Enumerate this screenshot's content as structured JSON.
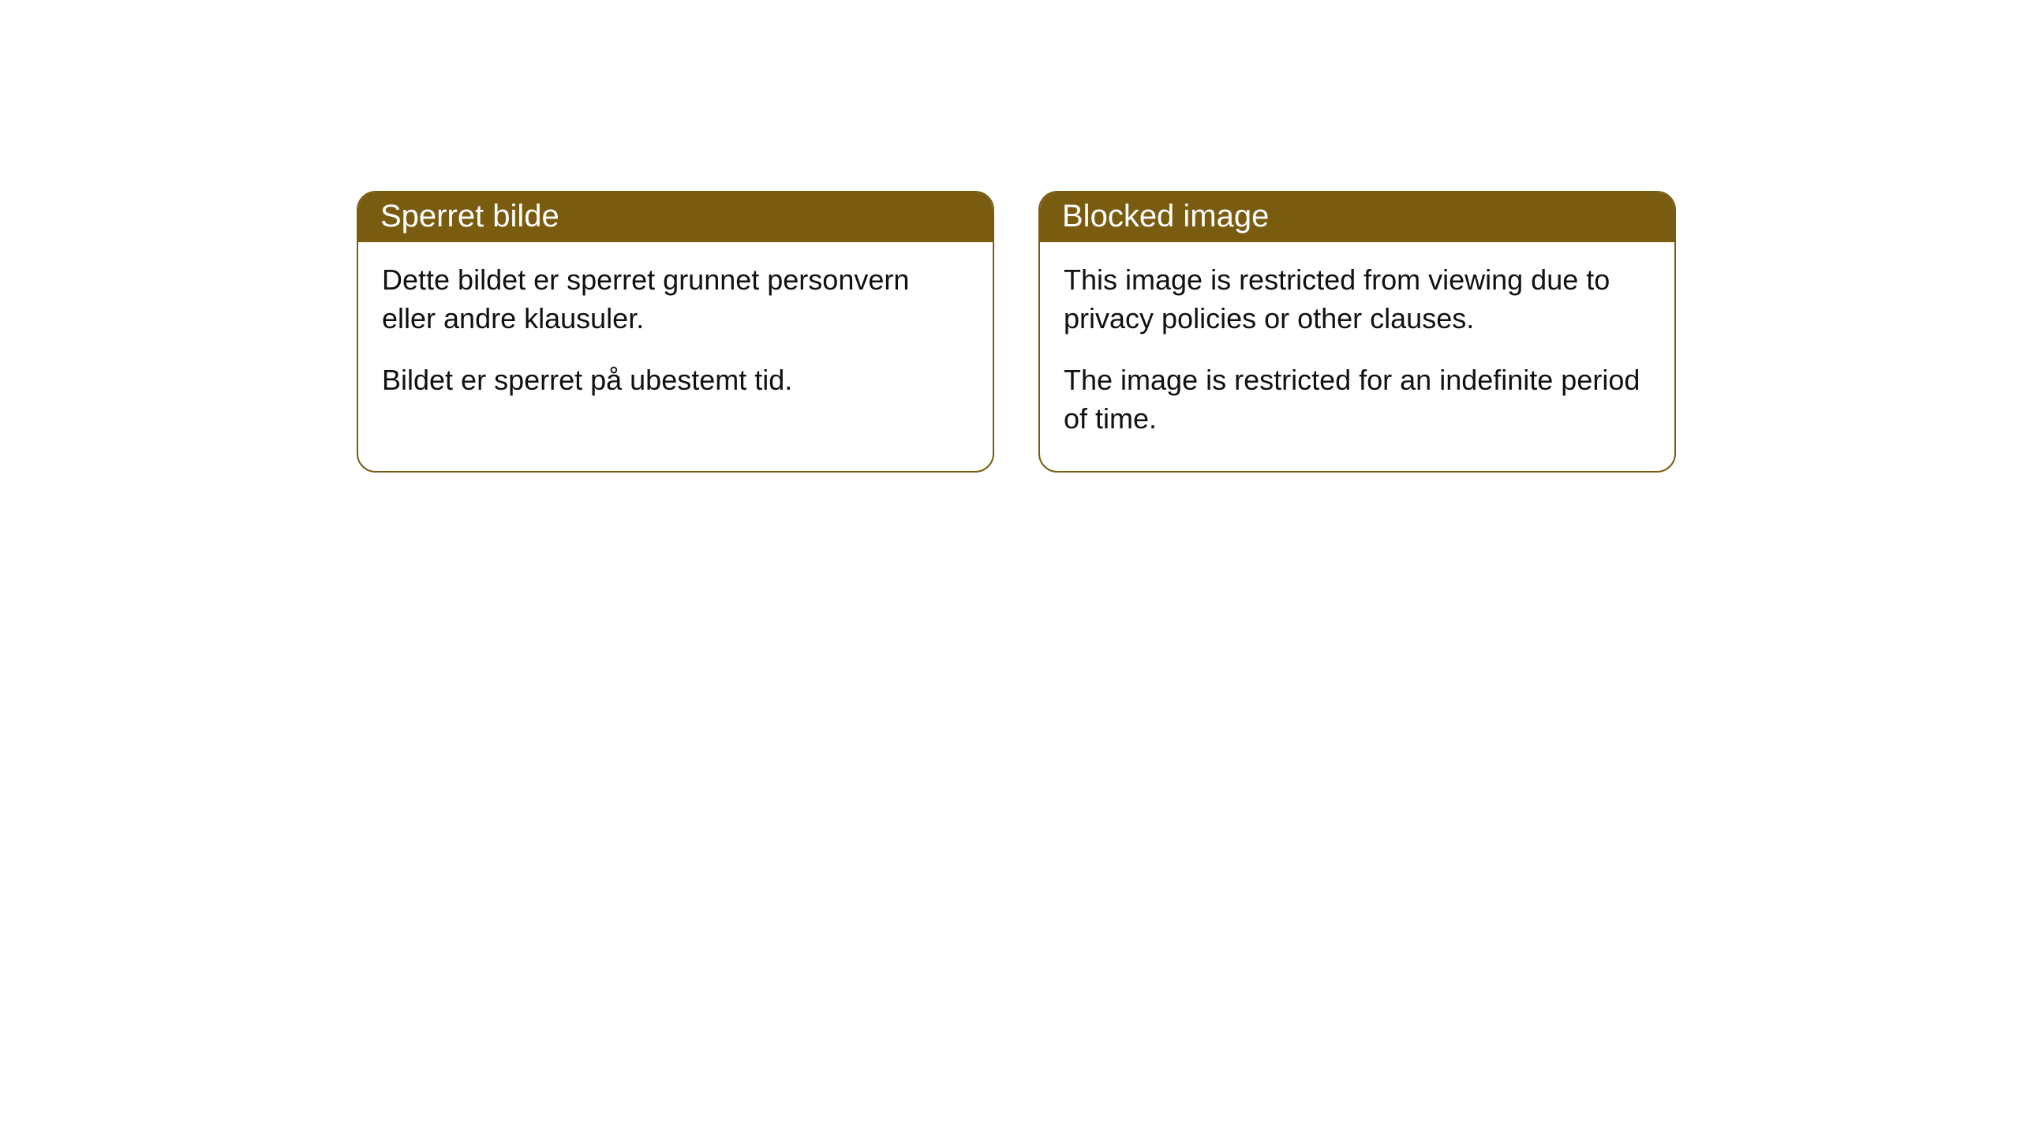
{
  "notices": [
    {
      "header": "Sperret bilde",
      "paragraph1": "Dette bildet er sperret grunnet personvern eller andre klausuler.",
      "paragraph2": "Bildet er sperret på ubestemt tid."
    },
    {
      "header": "Blocked image",
      "paragraph1": "This image is restricted from viewing due to privacy policies or other clauses.",
      "paragraph2": "The image is restricted for an indefinite period of time."
    }
  ],
  "styling": {
    "header_background": "#7a5c11",
    "header_text_color": "#ffffff",
    "border_color": "#7a5c11",
    "body_text_color": "#111111",
    "page_background": "#ffffff",
    "border_radius": 24,
    "header_fontsize": 40,
    "body_fontsize": 36
  }
}
